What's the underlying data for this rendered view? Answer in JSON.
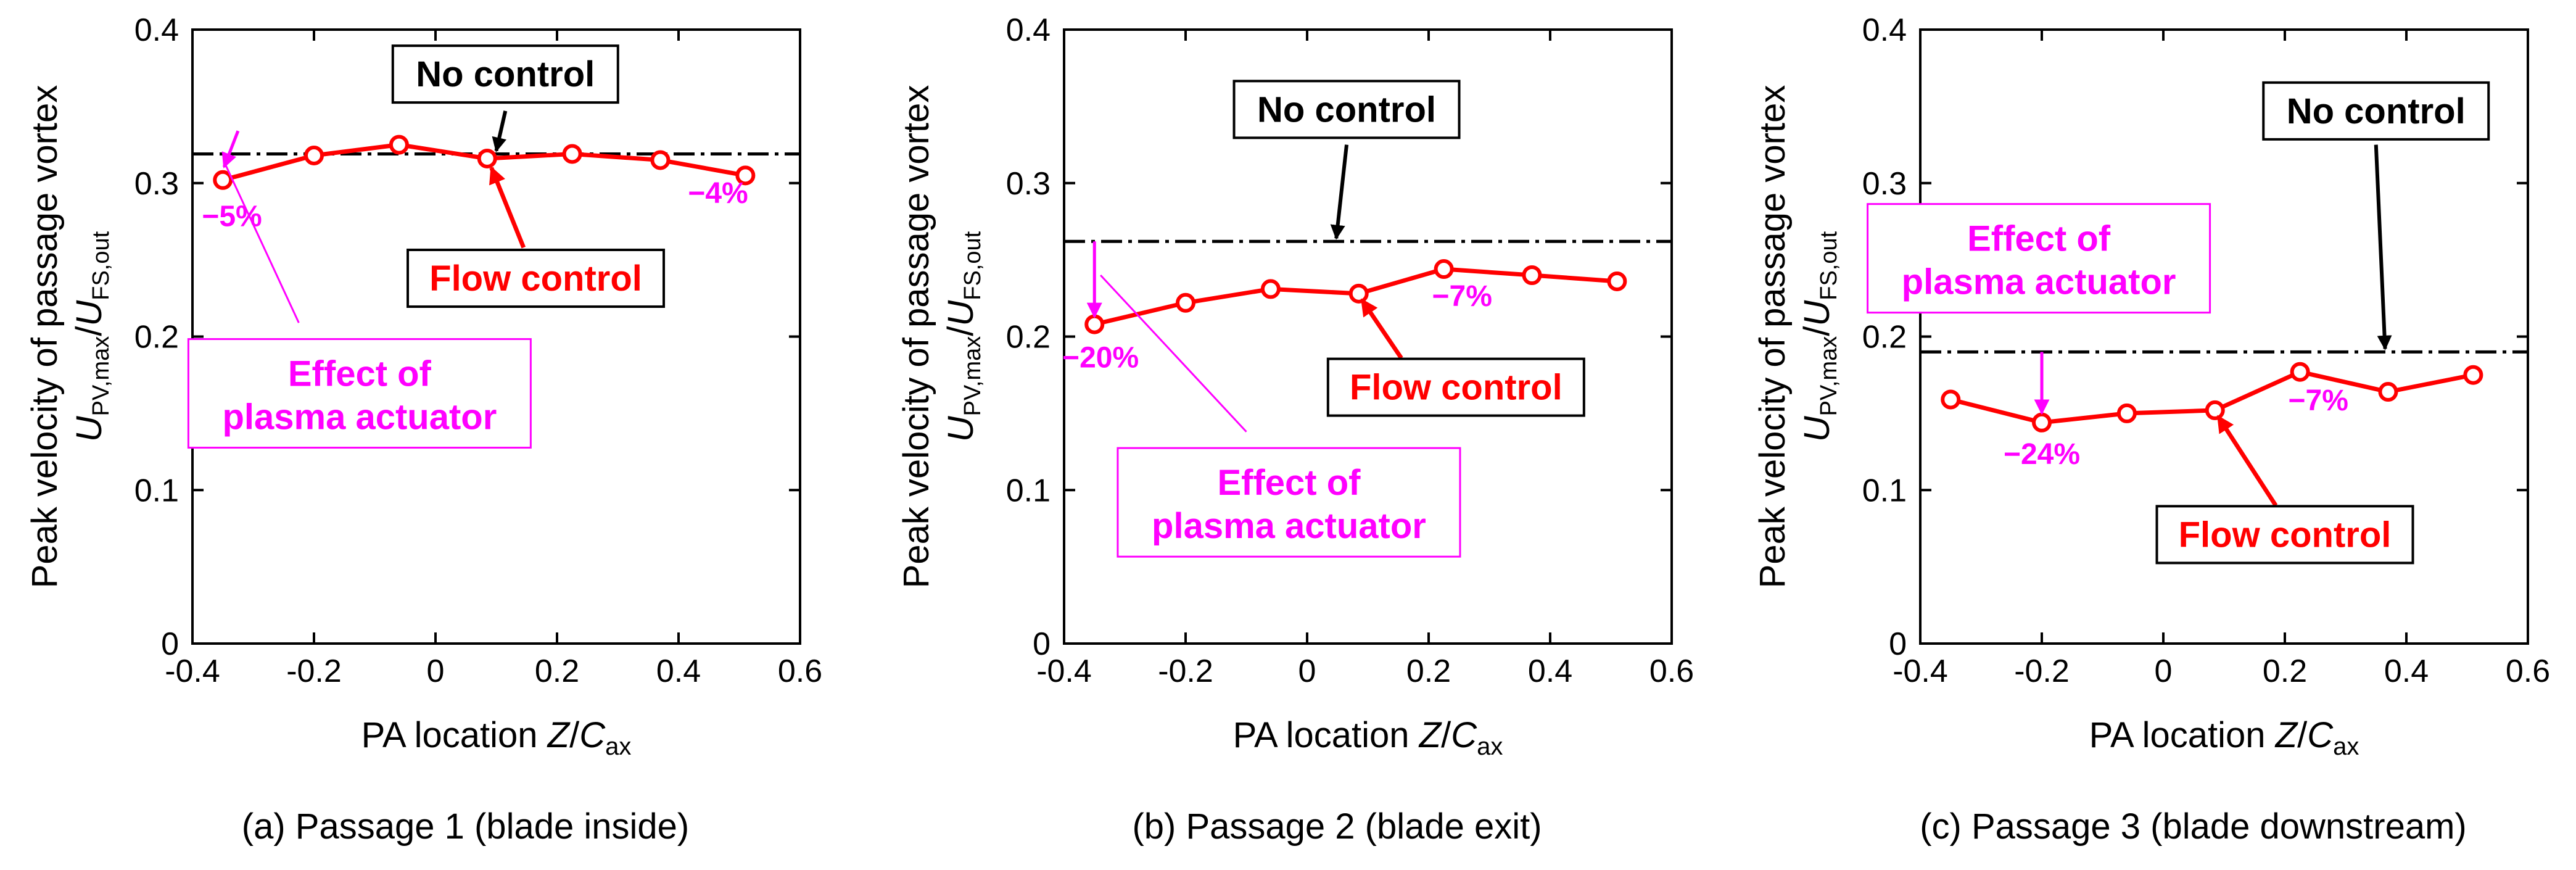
{
  "colors": {
    "series": "#ff0000",
    "effect": "#ff00ff",
    "baseline": "#000000",
    "axes": "#000000"
  },
  "chart_data": [
    {
      "type": "line",
      "caption": "(a) Passage 1 (blade inside)",
      "ylabel": {
        "prefix": "Peak velocity of passage vortex",
        "num": "U",
        "num_sub": "PV,max",
        "den": "U",
        "den_sub": "FS,out"
      },
      "xlabel": {
        "prefix": "PA location ",
        "var": "Z",
        "slash": "/",
        "den": "C",
        "den_sub": "ax"
      },
      "xlim": [
        -0.4,
        0.6
      ],
      "ylim": [
        0,
        0.4
      ],
      "xticks": [
        -0.4,
        -0.2,
        0,
        0.2,
        0.4,
        0.6
      ],
      "xtick_labels": [
        "-0.4",
        "-0.2",
        "0",
        "0.2",
        "0.4",
        "0.6"
      ],
      "yticks": [
        0,
        0.1,
        0.2,
        0.3,
        0.4
      ],
      "ytick_labels": [
        "0",
        "0.1",
        "0.2",
        "0.3",
        "0.4"
      ],
      "series": [
        {
          "name": "Flow control",
          "x": [
            -0.35,
            -0.2,
            -0.06,
            0.085,
            0.225,
            0.37,
            0.51
          ],
          "y": [
            0.302,
            0.318,
            0.325,
            0.316,
            0.319,
            0.315,
            0.305
          ]
        }
      ],
      "no_control": 0.319,
      "labels": {
        "no_control": "No control",
        "flow_control": "Flow control",
        "effect_line1": "Effect of",
        "effect_line2": "plasma actuator"
      },
      "annotations": [
        {
          "text": "−5%",
          "x": -0.35,
          "y": 0.302
        },
        {
          "text": "−4%",
          "x": 0.51,
          "y": 0.305
        }
      ]
    },
    {
      "type": "line",
      "caption": "(b) Passage 2 (blade exit)",
      "ylabel": {
        "prefix": "Peak velocity of passage vortex",
        "num": "U",
        "num_sub": "PV,max",
        "den": "U",
        "den_sub": "FS,out"
      },
      "xlabel": {
        "prefix": "PA location ",
        "var": "Z",
        "slash": "/",
        "den": "C",
        "den_sub": "ax"
      },
      "xlim": [
        -0.4,
        0.6
      ],
      "ylim": [
        0,
        0.4
      ],
      "xticks": [
        -0.4,
        -0.2,
        0,
        0.2,
        0.4,
        0.6
      ],
      "xtick_labels": [
        "-0.4",
        "-0.2",
        "0",
        "0.2",
        "0.4",
        "0.6"
      ],
      "yticks": [
        0,
        0.1,
        0.2,
        0.3,
        0.4
      ],
      "ytick_labels": [
        "0",
        "0.1",
        "0.2",
        "0.3",
        "0.4"
      ],
      "series": [
        {
          "name": "Flow control",
          "x": [
            -0.35,
            -0.2,
            -0.06,
            0.085,
            0.225,
            0.37,
            0.51
          ],
          "y": [
            0.208,
            0.222,
            0.231,
            0.228,
            0.244,
            0.24,
            0.236
          ]
        }
      ],
      "no_control": 0.262,
      "labels": {
        "no_control": "No control",
        "flow_control": "Flow control",
        "effect_line1": "Effect of",
        "effect_line2": "plasma actuator"
      },
      "annotations": [
        {
          "text": "−20%",
          "x": -0.35,
          "y": 0.208
        },
        {
          "text": "−7%",
          "x": 0.225,
          "y": 0.244
        }
      ]
    },
    {
      "type": "line",
      "caption": "(c) Passage 3 (blade downstream)",
      "ylabel": {
        "prefix": "Peak velocity of passage vortex",
        "num": "U",
        "num_sub": "PV,max",
        "den": "U",
        "den_sub": "FS,out"
      },
      "xlabel": {
        "prefix": "PA location ",
        "var": "Z",
        "slash": "/",
        "den": "C",
        "den_sub": "ax"
      },
      "xlim": [
        -0.4,
        0.6
      ],
      "ylim": [
        0,
        0.4
      ],
      "xticks": [
        -0.4,
        -0.2,
        0,
        0.2,
        0.4,
        0.6
      ],
      "xtick_labels": [
        "-0.4",
        "-0.2",
        "0",
        "0.2",
        "0.4",
        "0.6"
      ],
      "yticks": [
        0,
        0.1,
        0.2,
        0.3,
        0.4
      ],
      "ytick_labels": [
        "0",
        "0.1",
        "0.2",
        "0.3",
        "0.4"
      ],
      "series": [
        {
          "name": "Flow control",
          "x": [
            -0.35,
            -0.2,
            -0.06,
            0.085,
            0.225,
            0.37,
            0.51
          ],
          "y": [
            0.159,
            0.144,
            0.15,
            0.152,
            0.177,
            0.164,
            0.175
          ]
        }
      ],
      "no_control": 0.19,
      "labels": {
        "no_control": "No control",
        "flow_control": "Flow control",
        "effect_line1": "Effect of",
        "effect_line2": "plasma actuator"
      },
      "annotations": [
        {
          "text": "−24%",
          "x": -0.2,
          "y": 0.144
        },
        {
          "text": "−7%",
          "x": 0.225,
          "y": 0.177
        }
      ]
    }
  ]
}
